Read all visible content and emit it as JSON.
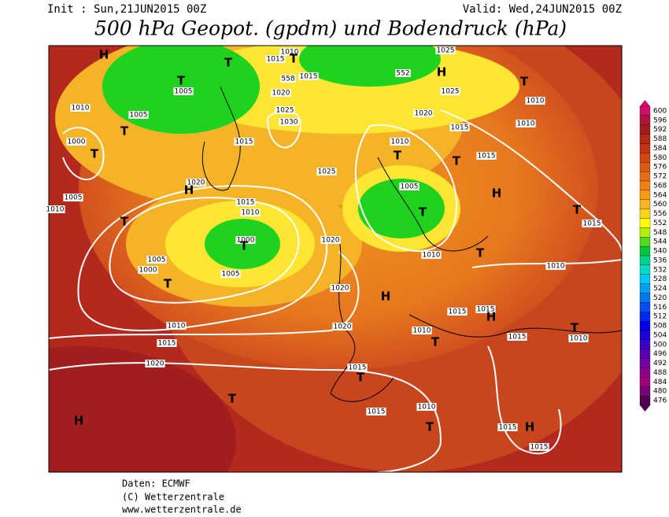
{
  "header": {
    "init": "Init : Sun,21JUN2015 00Z",
    "valid": "Valid: Wed,24JUN2015 00Z",
    "title": "500 hPa Geopot. (gpdm) und Bodendruck (hPa)"
  },
  "legend": {
    "values": [
      600,
      596,
      592,
      588,
      584,
      580,
      576,
      572,
      568,
      564,
      560,
      556,
      552,
      548,
      544,
      540,
      536,
      532,
      528,
      524,
      520,
      516,
      512,
      508,
      504,
      500,
      496,
      492,
      488,
      484,
      480,
      476
    ],
    "colors": [
      "#d0106a",
      "#b4143c",
      "#a01e1e",
      "#b42814",
      "#c83214",
      "#d24614",
      "#dc5a14",
      "#e66e14",
      "#f08214",
      "#f59b14",
      "#fab41e",
      "#ffd21e",
      "#ffff00",
      "#b4f000",
      "#50dc1e",
      "#00c83c",
      "#00d28c",
      "#00dcc8",
      "#00c8f0",
      "#00a0f0",
      "#0078f0",
      "#0050f0",
      "#0028f0",
      "#0000f0",
      "#1e00dc",
      "#3c00c8",
      "#5a00b4",
      "#7800a0",
      "#8c008c",
      "#a00078",
      "#780078",
      "#500050"
    ]
  },
  "map": {
    "labels": [
      "H",
      "T",
      "1015",
      "1010",
      "T",
      "T",
      "1005",
      "558",
      "1015",
      "552",
      "1025",
      "H",
      "T",
      "1010",
      "1005",
      "1020",
      "1025",
      "1030",
      "1025",
      "1010",
      "T",
      "1000",
      "T",
      "1020",
      "1015",
      "1010",
      "1015",
      "1010",
      "T",
      "T",
      "1015",
      "1025",
      "1020",
      "H",
      "1005",
      "1005",
      "H",
      "1010",
      "T",
      "1015",
      "1010",
      "T",
      "T",
      "1015",
      "1000",
      "T",
      "1020",
      "1005",
      "1000",
      "T",
      "1005",
      "1010",
      "T",
      "1010",
      "1020",
      "H",
      "1015",
      "1015",
      "H",
      "1010",
      "1020",
      "1010",
      "T",
      "1015",
      "T",
      "1010",
      "1015",
      "1020",
      "1015",
      "T",
      "T",
      "H",
      "1015",
      "1010",
      "T",
      "1015",
      "H",
      "1015"
    ]
  },
  "footer": [
    "Daten: ECMWF",
    "(C) Wetterzentrale",
    "www.wetterzentrale.de"
  ]
}
